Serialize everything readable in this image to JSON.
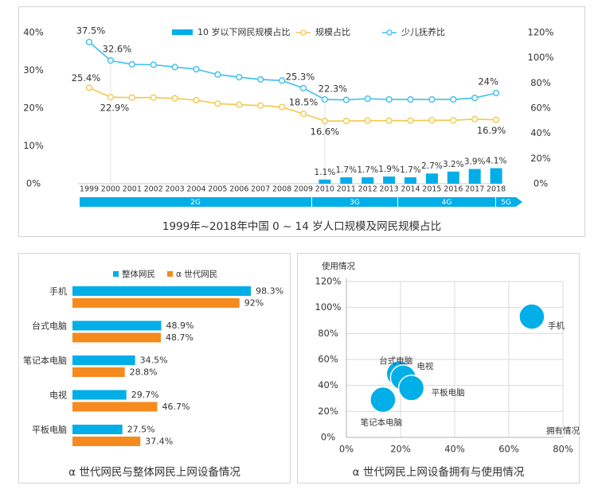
{
  "colors": {
    "blue": "#00aee8",
    "orange": "#f58a1f",
    "gold": "#f5c84c",
    "cyan": "#3cc0ec",
    "grid": "#d9d9d9",
    "text": "#333333"
  },
  "chart_data": [
    {
      "type": "line",
      "title": "1999年~2018年中国 0 ~ 14 岁人口规模及网民规模占比",
      "x": [
        "1999",
        "2000",
        "2001",
        "2002",
        "2003",
        "2004",
        "2005",
        "2006",
        "2007",
        "2008",
        "2009",
        "2010",
        "2011",
        "2012",
        "2013",
        "2014",
        "2015",
        "2016",
        "2017",
        "2018"
      ],
      "left_axis": {
        "ticks": [
          "0%",
          "10%",
          "20%",
          "30%",
          "40%"
        ],
        "range": [
          0,
          40
        ]
      },
      "right_axis": {
        "ticks": [
          "0%",
          "20%",
          "40%",
          "60%",
          "80%",
          "100%",
          "120%"
        ],
        "range": [
          0,
          120
        ]
      },
      "legend": [
        "10 岁以下网民规模占比",
        "规模占比",
        "少儿抚养比"
      ],
      "series": [
        {
          "name": "10 岁以下网民规模占比",
          "kind": "bar",
          "axis": "left",
          "values": [
            null,
            null,
            null,
            null,
            null,
            null,
            null,
            null,
            null,
            null,
            null,
            1.1,
            1.7,
            1.7,
            1.9,
            1.7,
            2.7,
            3.2,
            3.9,
            4.1
          ],
          "labels": [
            "",
            "",
            "",
            "",
            "",
            "",
            "",
            "",
            "",
            "",
            "",
            "1.1%",
            "1.7%",
            "1.7%",
            "1.9%",
            "1.7%",
            "2.7%",
            "3.2%",
            "3.9%",
            "4.1%"
          ]
        },
        {
          "name": "规模占比",
          "kind": "line",
          "axis": "left",
          "values": [
            25.4,
            22.9,
            22.8,
            22.8,
            22.6,
            22.1,
            21.2,
            20.9,
            20.7,
            20.3,
            18.5,
            16.6,
            16.6,
            16.7,
            16.7,
            16.7,
            16.8,
            16.8,
            17.1,
            16.9
          ],
          "labels": [
            "25.4%",
            "22.9%",
            "",
            "",
            "",
            "",
            "",
            "",
            "",
            "",
            "18.5%",
            "16.6%",
            "",
            "",
            "",
            "",
            "",
            "",
            "",
            "16.9%"
          ]
        },
        {
          "name": "少儿抚养比",
          "kind": "line",
          "axis": "left",
          "values": [
            37.5,
            32.6,
            31.6,
            31.5,
            30.9,
            30.3,
            28.9,
            28.2,
            27.6,
            27.3,
            25.3,
            22.3,
            22.2,
            22.5,
            22.3,
            22.3,
            22.3,
            22.3,
            22.7,
            24
          ],
          "labels": [
            "37.5%",
            "32.6%",
            "",
            "",
            "",
            "",
            "",
            "",
            "",
            "",
            "25.3%",
            "22.3%",
            "",
            "",
            "",
            "",
            "",
            "",
            "",
            "24%"
          ]
        }
      ],
      "eras": [
        {
          "label": "2G",
          "from": "1999",
          "to": "2009"
        },
        {
          "label": "3G",
          "from": "2010",
          "to": "2013"
        },
        {
          "label": "4G",
          "from": "2014",
          "to": "2018"
        },
        {
          "label": "5G",
          "from": "",
          "to": ""
        }
      ]
    },
    {
      "type": "bar",
      "orientation": "horizontal",
      "title": "α 世代网民与整体网民上网设备情况",
      "categories": [
        "手机",
        "台式电脑",
        "笔记本电脑",
        "电视",
        "平板电脑"
      ],
      "xlim": [
        0,
        100
      ],
      "series": [
        {
          "name": "整体网民",
          "values": [
            98.3,
            48.9,
            34.5,
            29.7,
            27.5
          ],
          "labels": [
            "98.3%",
            "48.9%",
            "34.5%",
            "29.7%",
            "27.5%"
          ]
        },
        {
          "name": "α 世代网民",
          "values": [
            92,
            48.7,
            28.8,
            46.7,
            37.4
          ],
          "labels": [
            "92%",
            "48.7%",
            "28.8%",
            "46.7%",
            "37.4%"
          ]
        }
      ]
    },
    {
      "type": "scatter",
      "title": "α 世代网民上网设备拥有与使用情况",
      "xlabel": "拥有情况",
      "ylabel": "使用情况",
      "xlim": [
        0,
        80
      ],
      "ylim": [
        0,
        120
      ],
      "x_ticks": [
        "0%",
        "20%",
        "40%",
        "60%",
        "80%"
      ],
      "y_ticks": [
        "0%",
        "20%",
        "40%",
        "60%",
        "80%",
        "100%",
        "120%"
      ],
      "points": [
        {
          "label": "手机",
          "x": 68.5,
          "y": 93
        },
        {
          "label": "台式电脑",
          "x": 19.5,
          "y": 49
        },
        {
          "label": "电视",
          "x": 21,
          "y": 46
        },
        {
          "label": "平板电脑",
          "x": 24,
          "y": 38
        },
        {
          "label": "笔记本电脑",
          "x": 13.5,
          "y": 29
        }
      ]
    }
  ]
}
